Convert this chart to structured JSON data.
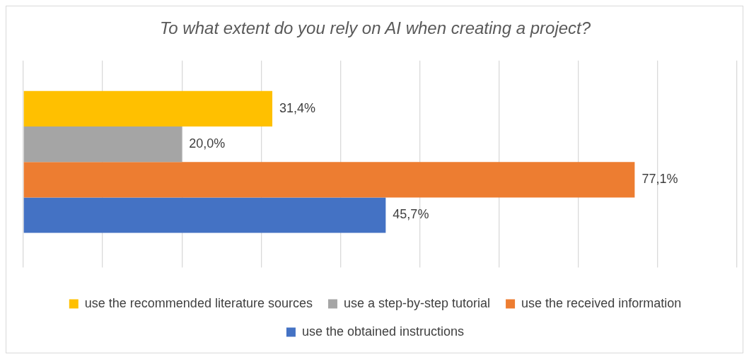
{
  "chart_data": {
    "type": "bar",
    "orientation": "horizontal",
    "title": "To what extent do you rely on AI when creating a project?",
    "categories": [
      null
    ],
    "series": [
      {
        "name": "use the recommended literature sources",
        "color": "#ffc000",
        "values": [
          31.4
        ],
        "value_labels": [
          "31,4%"
        ]
      },
      {
        "name": "use a step-by-step tutorial",
        "color": "#a5a5a5",
        "values": [
          20.0
        ],
        "value_labels": [
          "20,0%"
        ]
      },
      {
        "name": "use the received information",
        "color": "#ed7d31",
        "values": [
          77.1
        ],
        "value_labels": [
          "77,1%"
        ]
      },
      {
        "name": "use the obtained instructions",
        "color": "#4472c4",
        "values": [
          45.7
        ],
        "value_labels": [
          "45,7%"
        ]
      }
    ],
    "xlim": [
      0,
      90
    ],
    "xticks": [
      {
        "value": 0,
        "label": null
      },
      {
        "value": 10,
        "label": null
      },
      {
        "value": 20,
        "label": null
      },
      {
        "value": 30,
        "label": null
      },
      {
        "value": 40,
        "label": null
      },
      {
        "value": 50,
        "label": null
      },
      {
        "value": 60,
        "label": null
      },
      {
        "value": 70,
        "label": null
      },
      {
        "value": 80,
        "label": null
      },
      {
        "value": 90,
        "label": null
      }
    ],
    "grid": "x",
    "legend": "bottom"
  }
}
